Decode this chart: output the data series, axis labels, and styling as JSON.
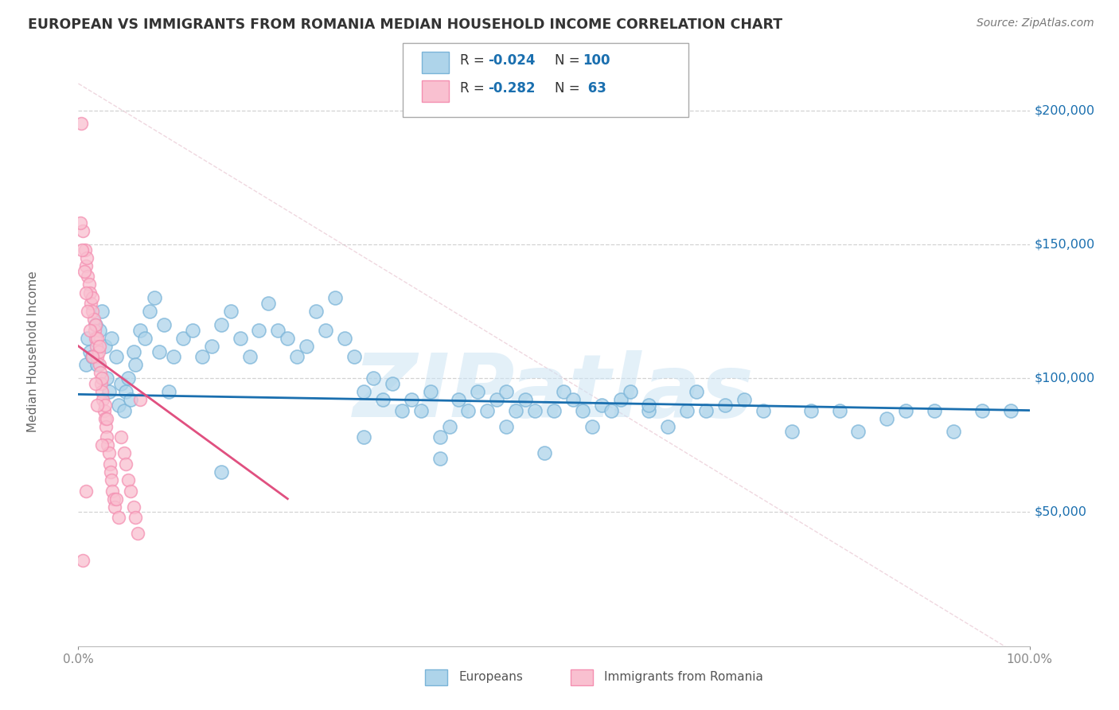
{
  "title": "EUROPEAN VS IMMIGRANTS FROM ROMANIA MEDIAN HOUSEHOLD INCOME CORRELATION CHART",
  "source": "Source: ZipAtlas.com",
  "ylabel": "Median Household Income",
  "xlim": [
    0,
    1.0
  ],
  "ylim": [
    0,
    220000
  ],
  "xtick_labels": [
    "0.0%",
    "100.0%"
  ],
  "ytick_labels": [
    "$50,000",
    "$100,000",
    "$150,000",
    "$200,000"
  ],
  "ytick_values": [
    50000,
    100000,
    150000,
    200000
  ],
  "background_color": "#ffffff",
  "grid_color": "#c8c8c8",
  "watermark": "ZIPatlas",
  "blue_color": "#7ab4d8",
  "pink_color": "#f48fb1",
  "blue_line_color": "#1a6faf",
  "pink_line_color": "#e05080",
  "blue_scatter_color": "#aed4ea",
  "pink_scatter_color": "#f9c0d0",
  "europeans_x": [
    0.008,
    0.01,
    0.012,
    0.015,
    0.018,
    0.02,
    0.022,
    0.025,
    0.028,
    0.03,
    0.032,
    0.035,
    0.04,
    0.042,
    0.045,
    0.048,
    0.05,
    0.052,
    0.055,
    0.058,
    0.06,
    0.065,
    0.07,
    0.075,
    0.08,
    0.085,
    0.09,
    0.095,
    0.1,
    0.11,
    0.12,
    0.13,
    0.14,
    0.15,
    0.16,
    0.17,
    0.18,
    0.19,
    0.2,
    0.21,
    0.22,
    0.23,
    0.24,
    0.25,
    0.26,
    0.27,
    0.28,
    0.29,
    0.3,
    0.31,
    0.32,
    0.33,
    0.34,
    0.35,
    0.36,
    0.37,
    0.38,
    0.39,
    0.4,
    0.41,
    0.42,
    0.43,
    0.44,
    0.45,
    0.46,
    0.47,
    0.48,
    0.5,
    0.51,
    0.52,
    0.53,
    0.54,
    0.55,
    0.56,
    0.57,
    0.58,
    0.6,
    0.62,
    0.64,
    0.65,
    0.66,
    0.68,
    0.7,
    0.72,
    0.75,
    0.77,
    0.8,
    0.82,
    0.85,
    0.87,
    0.9,
    0.92,
    0.95,
    0.6,
    0.45,
    0.3,
    0.49,
    0.38,
    0.98,
    0.15
  ],
  "europeans_y": [
    105000,
    115000,
    110000,
    108000,
    120000,
    105000,
    118000,
    125000,
    112000,
    100000,
    95000,
    115000,
    108000,
    90000,
    98000,
    88000,
    95000,
    100000,
    92000,
    110000,
    105000,
    118000,
    115000,
    125000,
    130000,
    110000,
    120000,
    95000,
    108000,
    115000,
    118000,
    108000,
    112000,
    120000,
    125000,
    115000,
    108000,
    118000,
    128000,
    118000,
    115000,
    108000,
    112000,
    125000,
    118000,
    130000,
    115000,
    108000,
    95000,
    100000,
    92000,
    98000,
    88000,
    92000,
    88000,
    95000,
    78000,
    82000,
    92000,
    88000,
    95000,
    88000,
    92000,
    82000,
    88000,
    92000,
    88000,
    88000,
    95000,
    92000,
    88000,
    82000,
    90000,
    88000,
    92000,
    95000,
    88000,
    82000,
    88000,
    95000,
    88000,
    90000,
    92000,
    88000,
    80000,
    88000,
    88000,
    80000,
    85000,
    88000,
    88000,
    80000,
    88000,
    90000,
    95000,
    78000,
    72000,
    70000,
    88000,
    65000
  ],
  "romania_x": [
    0.003,
    0.005,
    0.007,
    0.008,
    0.009,
    0.01,
    0.011,
    0.012,
    0.013,
    0.015,
    0.015,
    0.016,
    0.017,
    0.018,
    0.018,
    0.019,
    0.02,
    0.02,
    0.021,
    0.022,
    0.022,
    0.023,
    0.024,
    0.025,
    0.025,
    0.026,
    0.027,
    0.028,
    0.028,
    0.029,
    0.03,
    0.03,
    0.031,
    0.032,
    0.033,
    0.034,
    0.035,
    0.036,
    0.037,
    0.038,
    0.04,
    0.042,
    0.045,
    0.048,
    0.05,
    0.052,
    0.055,
    0.058,
    0.06,
    0.062,
    0.002,
    0.004,
    0.006,
    0.008,
    0.01,
    0.012,
    0.015,
    0.018,
    0.02,
    0.025,
    0.005,
    0.008,
    0.065
  ],
  "romania_y": [
    195000,
    155000,
    148000,
    142000,
    145000,
    138000,
    135000,
    132000,
    128000,
    125000,
    130000,
    122000,
    118000,
    115000,
    120000,
    112000,
    108000,
    115000,
    110000,
    105000,
    112000,
    102000,
    98000,
    95000,
    100000,
    92000,
    88000,
    85000,
    90000,
    82000,
    78000,
    85000,
    75000,
    72000,
    68000,
    65000,
    62000,
    58000,
    55000,
    52000,
    55000,
    48000,
    78000,
    72000,
    68000,
    62000,
    58000,
    52000,
    48000,
    42000,
    158000,
    148000,
    140000,
    132000,
    125000,
    118000,
    108000,
    98000,
    90000,
    75000,
    32000,
    58000,
    92000
  ]
}
